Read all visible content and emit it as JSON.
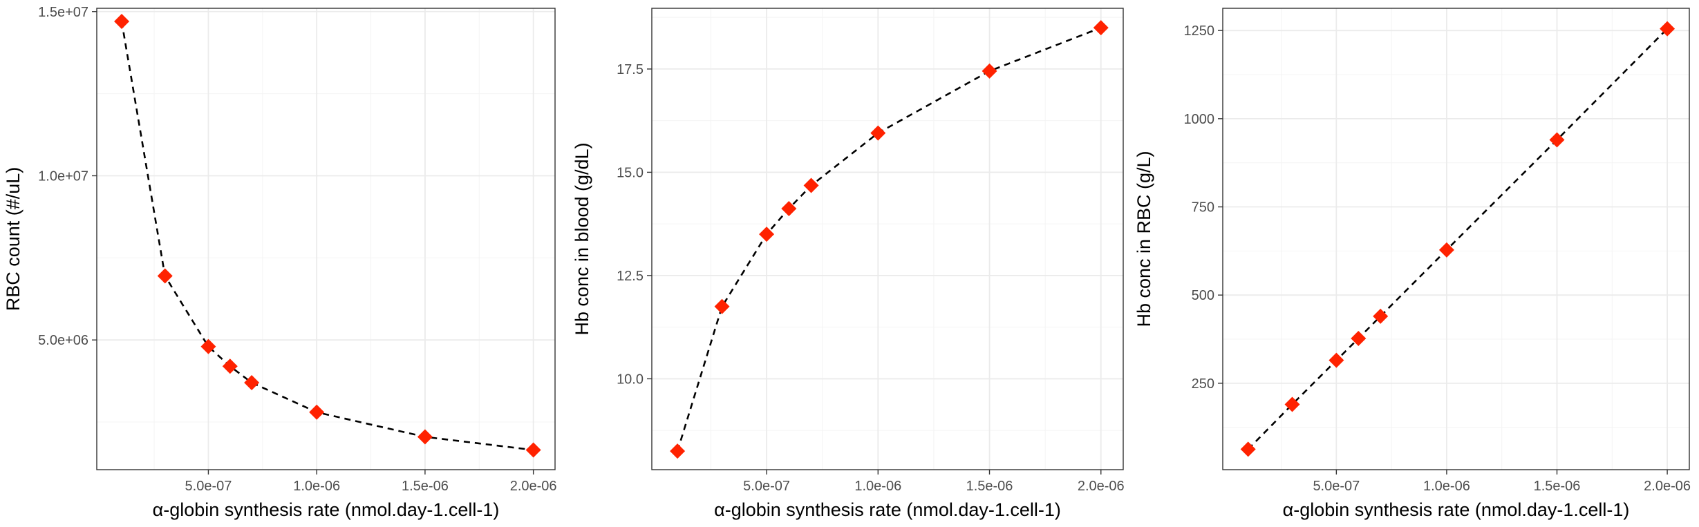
{
  "colors": {
    "marker": "#ff2200",
    "line": "#000000",
    "panel_border": "#333333",
    "grid": "#ebebeb",
    "background": "#ffffff"
  },
  "chart_data": [
    {
      "type": "line",
      "title": "",
      "xlabel": "α-globin synthesis rate (nmol.day-1.cell-1)",
      "ylabel": "RBC count (#/uL)",
      "x_ticks": [
        "5.0e-07",
        "1.0e-06",
        "1.5e-06",
        "2.0e-06"
      ],
      "y_ticks": [
        "5.0e+06",
        "1.0e+07",
        "1.5e+07"
      ],
      "x": [
        1e-07,
        3e-07,
        5e-07,
        6e-07,
        7e-07,
        1e-06,
        1.5e-06,
        2e-06
      ],
      "y": [
        14700000,
        6950000,
        4800000,
        4200000,
        3700000,
        2800000,
        2050000,
        1650000
      ],
      "xlim": [
        -1.5e-08,
        2.1e-06
      ],
      "ylim": [
        1050000.0,
        15100000.0
      ],
      "line_style": "dashed",
      "marker": "diamond",
      "grid": true
    },
    {
      "type": "line",
      "title": "",
      "xlabel": "α-globin synthesis rate (nmol.day-1.cell-1)",
      "ylabel": "Hb conc in blood (g/dL)",
      "x_ticks": [
        "5.0e-07",
        "1.0e-06",
        "1.5e-06",
        "2.0e-06"
      ],
      "y_ticks": [
        "10.0",
        "12.5",
        "15.0",
        "17.5"
      ],
      "x": [
        1e-07,
        3e-07,
        5e-07,
        6e-07,
        7e-07,
        1e-06,
        1.5e-06,
        2e-06
      ],
      "y": [
        8.25,
        11.75,
        13.5,
        14.12,
        14.68,
        15.95,
        17.45,
        18.5
      ],
      "xlim": [
        -1.5e-08,
        2.1e-06
      ],
      "ylim": [
        7.8,
        18.97
      ],
      "line_style": "dashed",
      "marker": "diamond",
      "grid": true
    },
    {
      "type": "line",
      "title": "",
      "xlabel": "α-globin synthesis rate (nmol.day-1.cell-1)",
      "ylabel": "Hb conc in RBC (g/L)",
      "x_ticks": [
        "5.0e-07",
        "1.0e-06",
        "1.5e-06",
        "2.0e-06"
      ],
      "y_ticks": [
        "250",
        "500",
        "750",
        "1000",
        "1250"
      ],
      "x": [
        1e-07,
        3e-07,
        5e-07,
        6e-07,
        7e-07,
        1e-06,
        1.5e-06,
        2e-06
      ],
      "y": [
        63,
        190,
        315,
        377,
        440,
        628,
        940,
        1255
      ],
      "xlim": [
        -1.5e-08,
        2.1e-06
      ],
      "ylim": [
        5,
        1313
      ],
      "line_style": "dashed",
      "marker": "diamond",
      "grid": true
    }
  ]
}
